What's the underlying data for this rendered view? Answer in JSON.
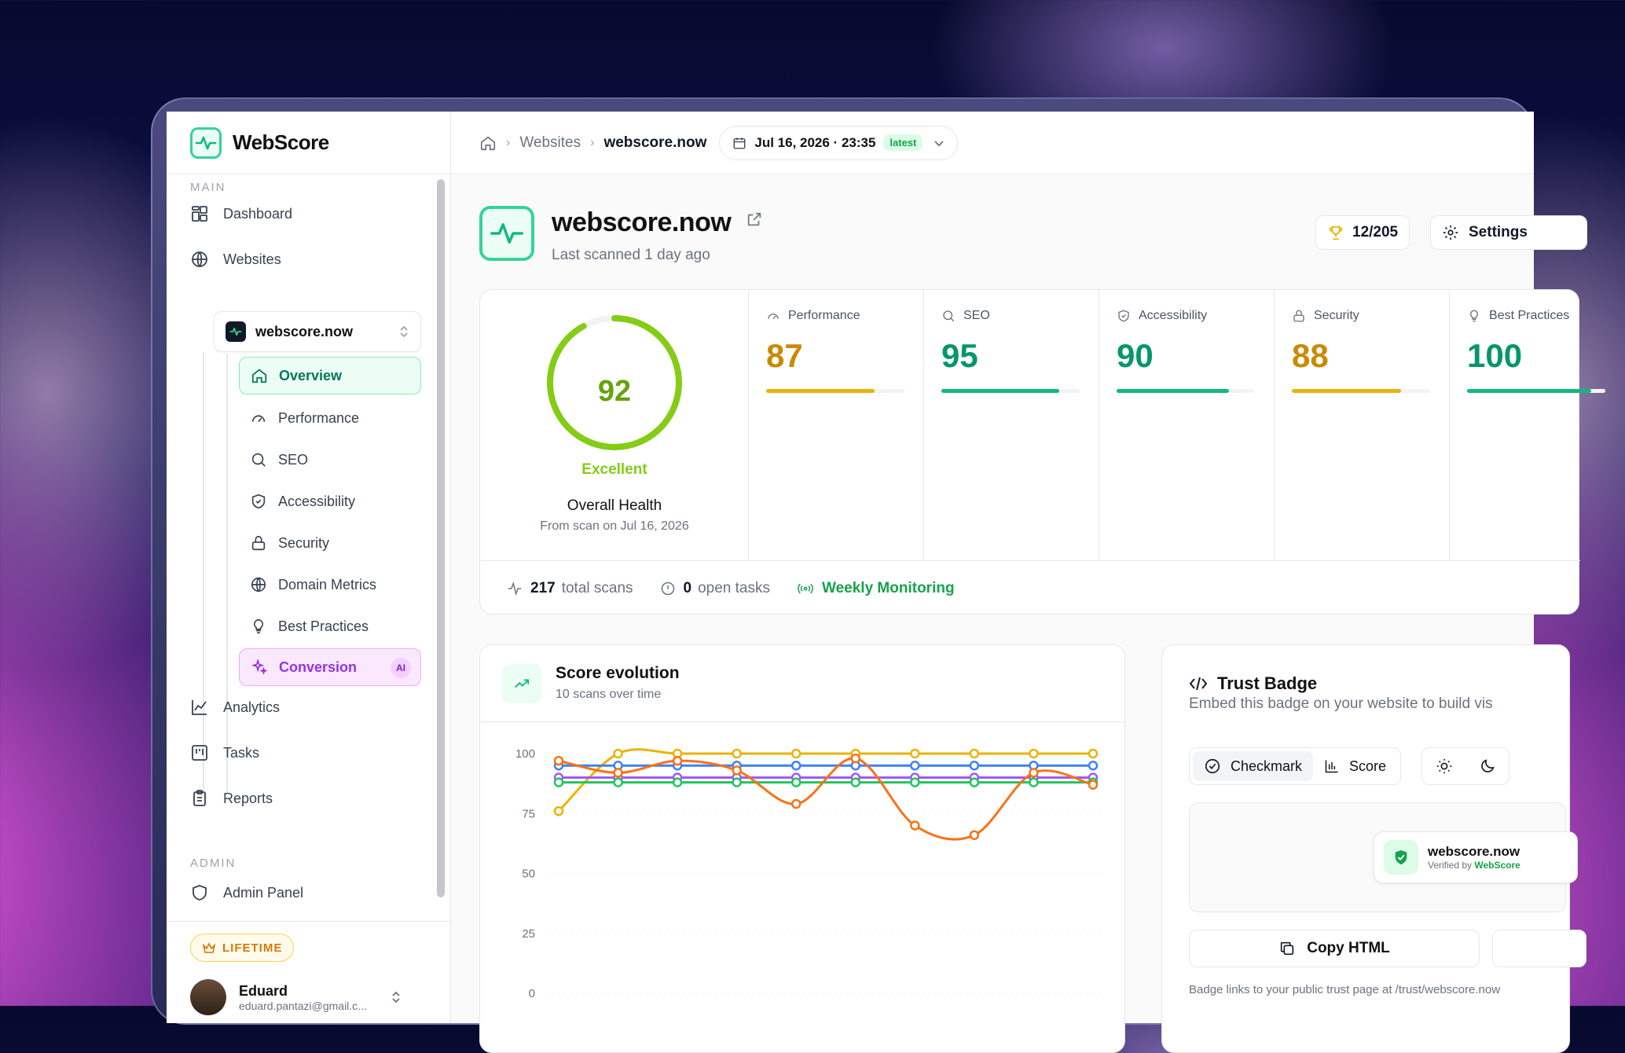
{
  "app": {
    "name": "WebScore"
  },
  "sidebar": {
    "main_label": "MAIN",
    "admin_label": "ADMIN",
    "items": [
      {
        "label": "Dashboard",
        "icon": "dashboard-icon"
      },
      {
        "label": "Websites",
        "icon": "globe-icon"
      },
      {
        "label": "Analytics",
        "icon": "line-chart-icon"
      },
      {
        "label": "Tasks",
        "icon": "kanban-icon"
      },
      {
        "label": "Reports",
        "icon": "clipboard-icon"
      },
      {
        "label": "Admin Panel",
        "icon": "shield-icon"
      }
    ],
    "site_selector": "webscore.now",
    "sub_items": [
      {
        "label": "Overview",
        "icon": "home-icon"
      },
      {
        "label": "Performance",
        "icon": "gauge-icon"
      },
      {
        "label": "SEO",
        "icon": "search-icon"
      },
      {
        "label": "Accessibility",
        "icon": "shield-check-icon"
      },
      {
        "label": "Security",
        "icon": "lock-icon"
      },
      {
        "label": "Domain Metrics",
        "icon": "globe-icon"
      },
      {
        "label": "Best Practices",
        "icon": "lightbulb-icon"
      },
      {
        "label": "Conversion",
        "icon": "sparkles-icon",
        "pill": "AI"
      }
    ],
    "plan_badge": "LIFETIME",
    "user": {
      "name": "Eduard",
      "email": "eduard.pantazi@gmail.c..."
    }
  },
  "topbar": {
    "breadcrumb": [
      "Websites",
      "webscore.now"
    ],
    "scan_date": "Jul 16, 2026 · 23:35",
    "scan_tag": "latest"
  },
  "header": {
    "title": "webscore.now",
    "subtitle": "Last scanned 1 day ago",
    "rank": "12/205",
    "settings_label": "Settings"
  },
  "health": {
    "score": "92",
    "score_value": 92,
    "rating": "Excellent",
    "title": "Overall Health",
    "subtitle": "From scan on Jul 16, 2026"
  },
  "metrics": [
    {
      "label": "Performance",
      "value": "87",
      "pct": 87,
      "color": "#ca8a04",
      "bar": "#eab308",
      "icon": "gauge-icon"
    },
    {
      "label": "SEO",
      "value": "95",
      "pct": 95,
      "color": "#059669",
      "bar": "#10b981",
      "icon": "search-icon"
    },
    {
      "label": "Accessibility",
      "value": "90",
      "pct": 90,
      "color": "#059669",
      "bar": "#10b981",
      "icon": "shield-check-icon"
    },
    {
      "label": "Security",
      "value": "88",
      "pct": 88,
      "color": "#ca8a04",
      "bar": "#eab308",
      "icon": "lock-icon"
    },
    {
      "label": "Best Practices",
      "value": "100",
      "pct": 100,
      "color": "#059669",
      "bar": "#10b981",
      "icon": "lightbulb-icon"
    }
  ],
  "stats": {
    "scans_count": "217",
    "scans_label": "total scans",
    "tasks_count": "0",
    "tasks_label": "open tasks",
    "monitoring": "Weekly Monitoring"
  },
  "chart": {
    "title": "Score evolution",
    "subtitle": "10 scans over time"
  },
  "chart_data": {
    "type": "line",
    "x": [
      1,
      2,
      3,
      4,
      5,
      6,
      7,
      8,
      9,
      10
    ],
    "ylim": [
      0,
      100
    ],
    "yticks": [
      100,
      75,
      50,
      25,
      0
    ],
    "series": [
      {
        "color": "#eab308",
        "values": [
          76,
          100,
          100,
          100,
          100,
          100,
          100,
          100,
          100,
          100
        ]
      },
      {
        "color": "#3b82f6",
        "values": [
          95,
          95,
          95,
          95,
          95,
          95,
          95,
          95,
          95,
          95
        ]
      },
      {
        "color": "#a855f7",
        "values": [
          90,
          90,
          90,
          90,
          90,
          90,
          90,
          90,
          90,
          90
        ]
      },
      {
        "color": "#22c55e",
        "values": [
          88,
          88,
          88,
          88,
          88,
          88,
          88,
          88,
          88,
          88
        ]
      },
      {
        "color": "#f97316",
        "values": [
          97,
          92,
          97,
          93,
          79,
          98,
          70,
          66,
          92,
          87
        ]
      }
    ]
  },
  "badge": {
    "title": "Trust Badge",
    "subtitle": "Embed this badge on your website to build vis",
    "style_options": [
      "Checkmark",
      "Score"
    ],
    "preview_name": "webscore.now",
    "preview_verified_prefix": "Verified by",
    "preview_verified_brand": "WebScore",
    "copy_label": "Copy HTML",
    "footer": "Badge links to your public trust page at /trust/webscore.now"
  },
  "colors": {
    "accent": "#10b981",
    "brand_ai": "#9333ea"
  }
}
